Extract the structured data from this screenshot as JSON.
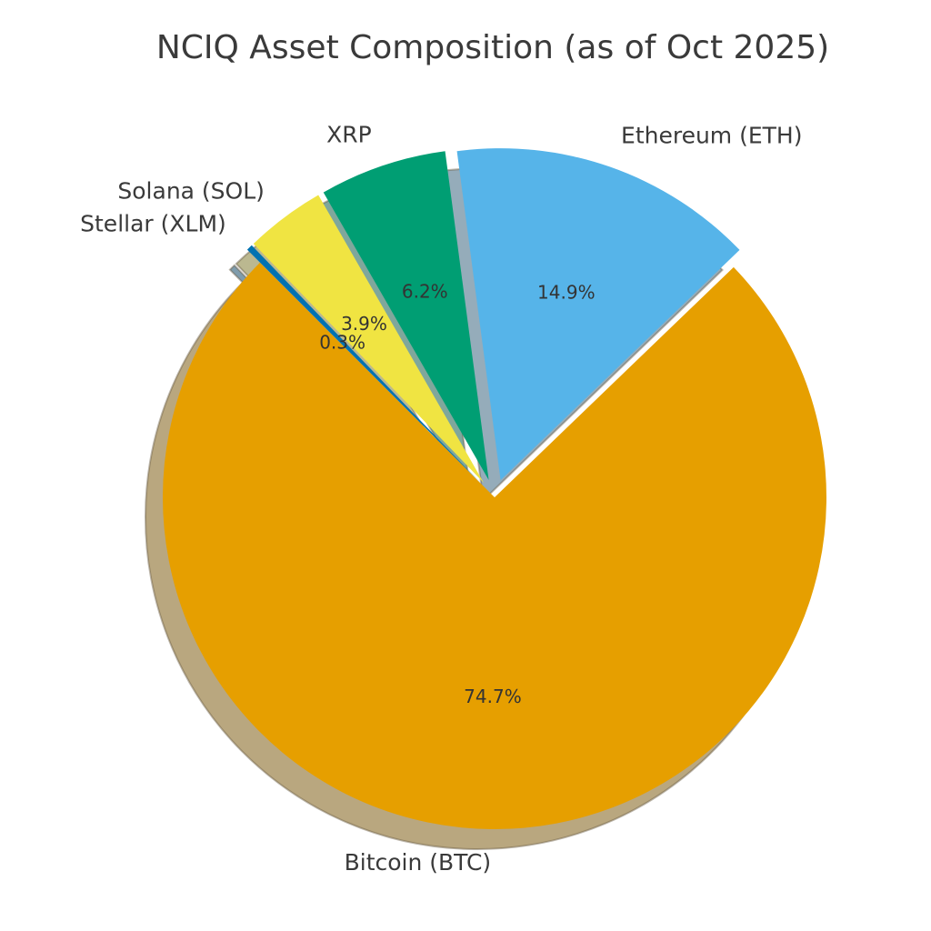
{
  "chart_data": {
    "type": "pie",
    "title": "NCIQ Asset Composition (as of Oct 2025)",
    "start_angle_deg": 135,
    "direction": "counterclockwise",
    "shadow": true,
    "slices": [
      {
        "label": "Bitcoin (BTC)",
        "value": 74.7,
        "pct_label": "74.7%",
        "color": "#E69F00",
        "exploded": false
      },
      {
        "label": "Ethereum (ETH)",
        "value": 14.9,
        "pct_label": "14.9%",
        "color": "#56B4E9",
        "exploded": true
      },
      {
        "label": "XRP",
        "value": 6.2,
        "pct_label": "6.2%",
        "color": "#009E73",
        "exploded": true
      },
      {
        "label": "Solana (SOL)",
        "value": 3.9,
        "pct_label": "3.9%",
        "color": "#F0E442",
        "exploded": true
      },
      {
        "label": "Stellar (XLM)",
        "value": 0.3,
        "pct_label": "0.3%",
        "color": "#0072B2",
        "exploded": true
      }
    ]
  }
}
